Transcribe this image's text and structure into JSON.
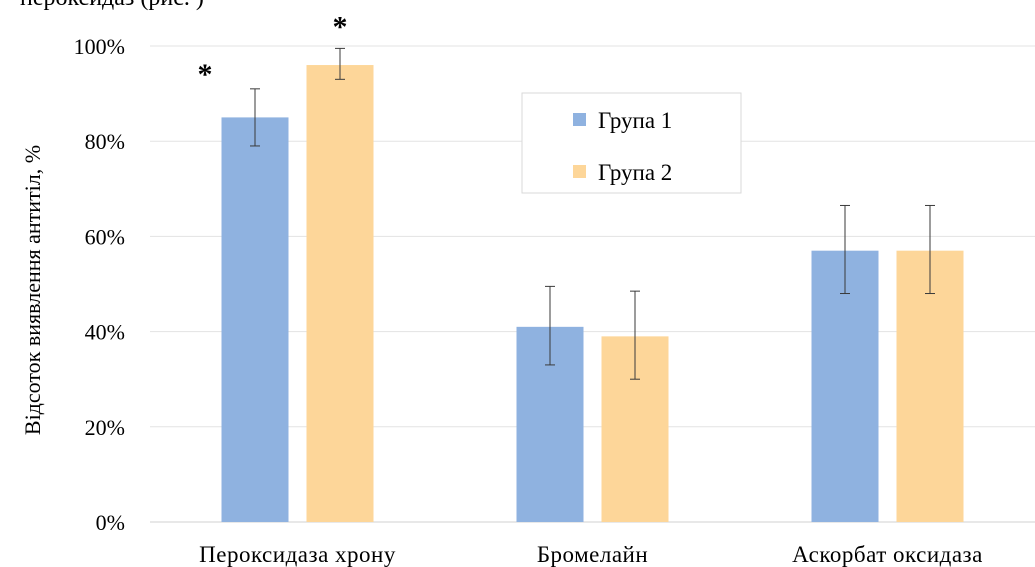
{
  "top_fragment": "пероксидаз (рис. )",
  "chart_data": {
    "type": "bar",
    "categories": [
      "Пероксидаза хрону",
      "Бромелайн",
      "Аскорбат оксидаза"
    ],
    "series": [
      {
        "name": "Група 1",
        "color": "#8fb2e0",
        "values": [
          85,
          41,
          57
        ],
        "error_low": [
          79,
          33,
          48
        ],
        "error_high": [
          91,
          49.5,
          66.5
        ]
      },
      {
        "name": "Група 2",
        "color": "#fdd699",
        "values": [
          96,
          39,
          57
        ],
        "error_low": [
          93,
          30,
          48
        ],
        "error_high": [
          99.5,
          48.5,
          66.5
        ]
      }
    ],
    "ylabel": "Відсоток виявлення антитіл, %",
    "xlabel": "",
    "ylim": [
      0,
      100
    ],
    "yticks": [
      "0%",
      "20%",
      "40%",
      "60%",
      "80%",
      "100%"
    ],
    "ytick_values": [
      0,
      20,
      40,
      60,
      80,
      100
    ],
    "grid": true,
    "legend_position": "top-center",
    "annotations": [
      {
        "text": "*",
        "category": 0,
        "series": 0
      },
      {
        "text": "*",
        "category": 0,
        "series": 1
      }
    ]
  }
}
